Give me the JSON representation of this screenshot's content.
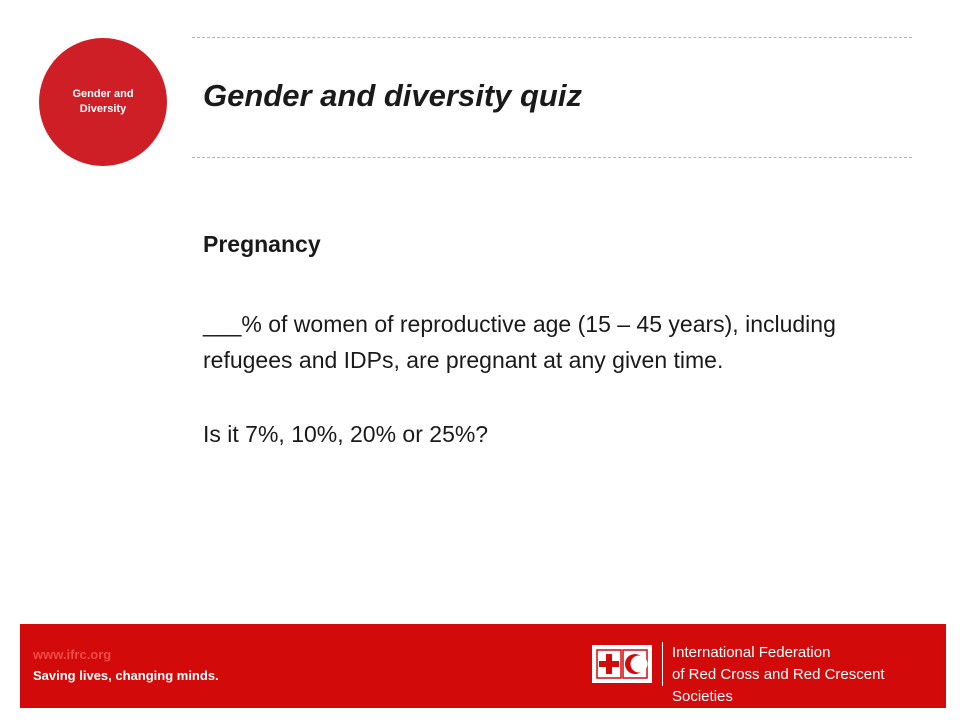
{
  "badge": {
    "line1": "Gender and",
    "line2": "Diversity"
  },
  "slide": {
    "title": "Gender and diversity quiz",
    "heading": "Pregnancy",
    "paragraph_1": "___% of women of reproductive age (15 – 45 years), including refugees and IDPs, are pregnant at any given time.",
    "paragraph_2": "Is it 7%, 10%, 20% or 25%?"
  },
  "footer": {
    "url": "www.ifrc.org",
    "tagline": "Saving lives, changing minds.",
    "org_line1": "International Federation",
    "org_line2": "of Red Cross and Red Crescent Societies",
    "logo_icon": "red-cross-red-crescent-emblem-icon"
  },
  "colors": {
    "badge": "#cf1f26",
    "footer": "#d30a0a",
    "text": "#1a1a1a"
  }
}
